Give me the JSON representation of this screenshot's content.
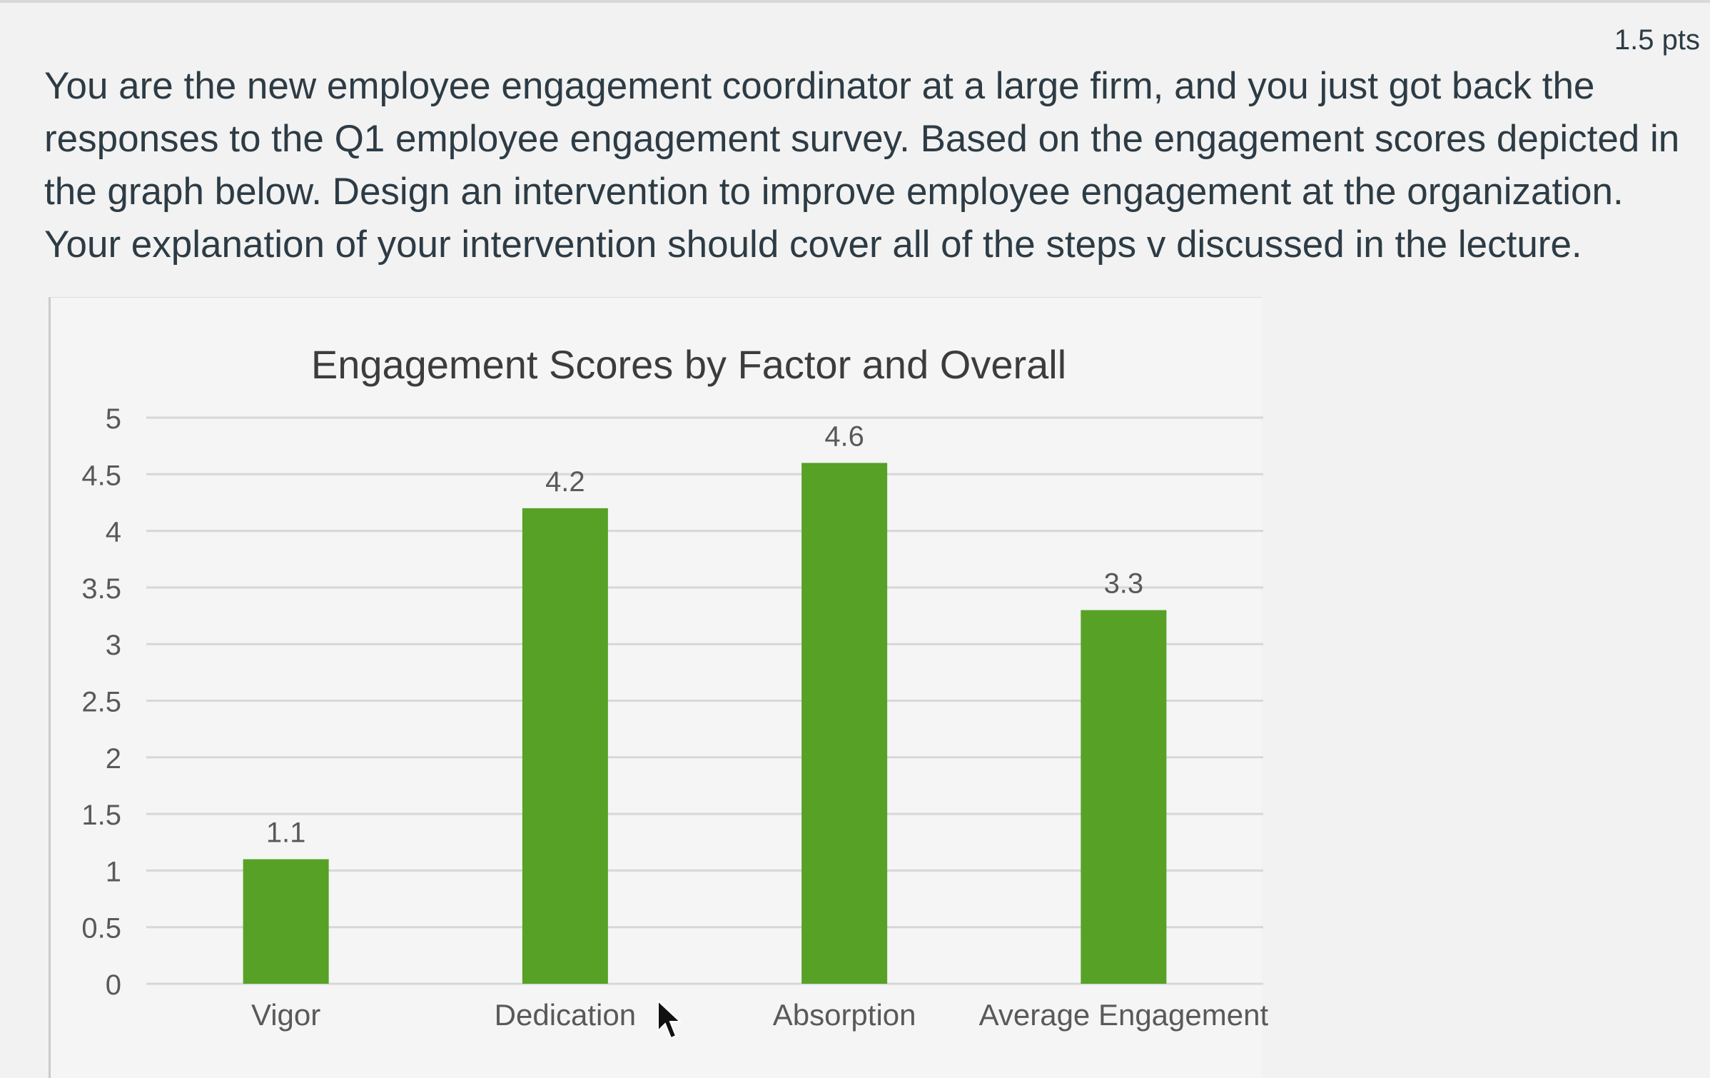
{
  "assignment": {
    "points": "1.5 pts",
    "question_text": "You are the new employee engagement coordinator at a large firm, and you just got back the responses to the Q1 employee engagement survey. Based on the engagement scores depicted in the graph below. Design an intervention to improve employee engagement at the organization. Your explanation of your intervention should cover all of the steps v discussed in the lecture."
  },
  "colors": {
    "bar": "#57a127",
    "grid": "#d6d8d8",
    "text": "#2d3b45",
    "axis_text": "#595959"
  },
  "chart_data": {
    "type": "bar",
    "title": "Engagement Scores by Factor and Overall",
    "categories": [
      "Vigor",
      "Dedication",
      "Absorption",
      "Average Engagement"
    ],
    "values": [
      1.1,
      4.2,
      4.6,
      3.3
    ],
    "data_labels": [
      "1.1",
      "4.2",
      "4.6",
      "3.3"
    ],
    "ylim": [
      0,
      5
    ],
    "yticks": [
      "0",
      "0.5",
      "1",
      "1.5",
      "2",
      "2.5",
      "3",
      "3.5",
      "4",
      "4.5",
      "5"
    ],
    "grid": true,
    "legend": "none",
    "xlabel": "",
    "ylabel": ""
  }
}
